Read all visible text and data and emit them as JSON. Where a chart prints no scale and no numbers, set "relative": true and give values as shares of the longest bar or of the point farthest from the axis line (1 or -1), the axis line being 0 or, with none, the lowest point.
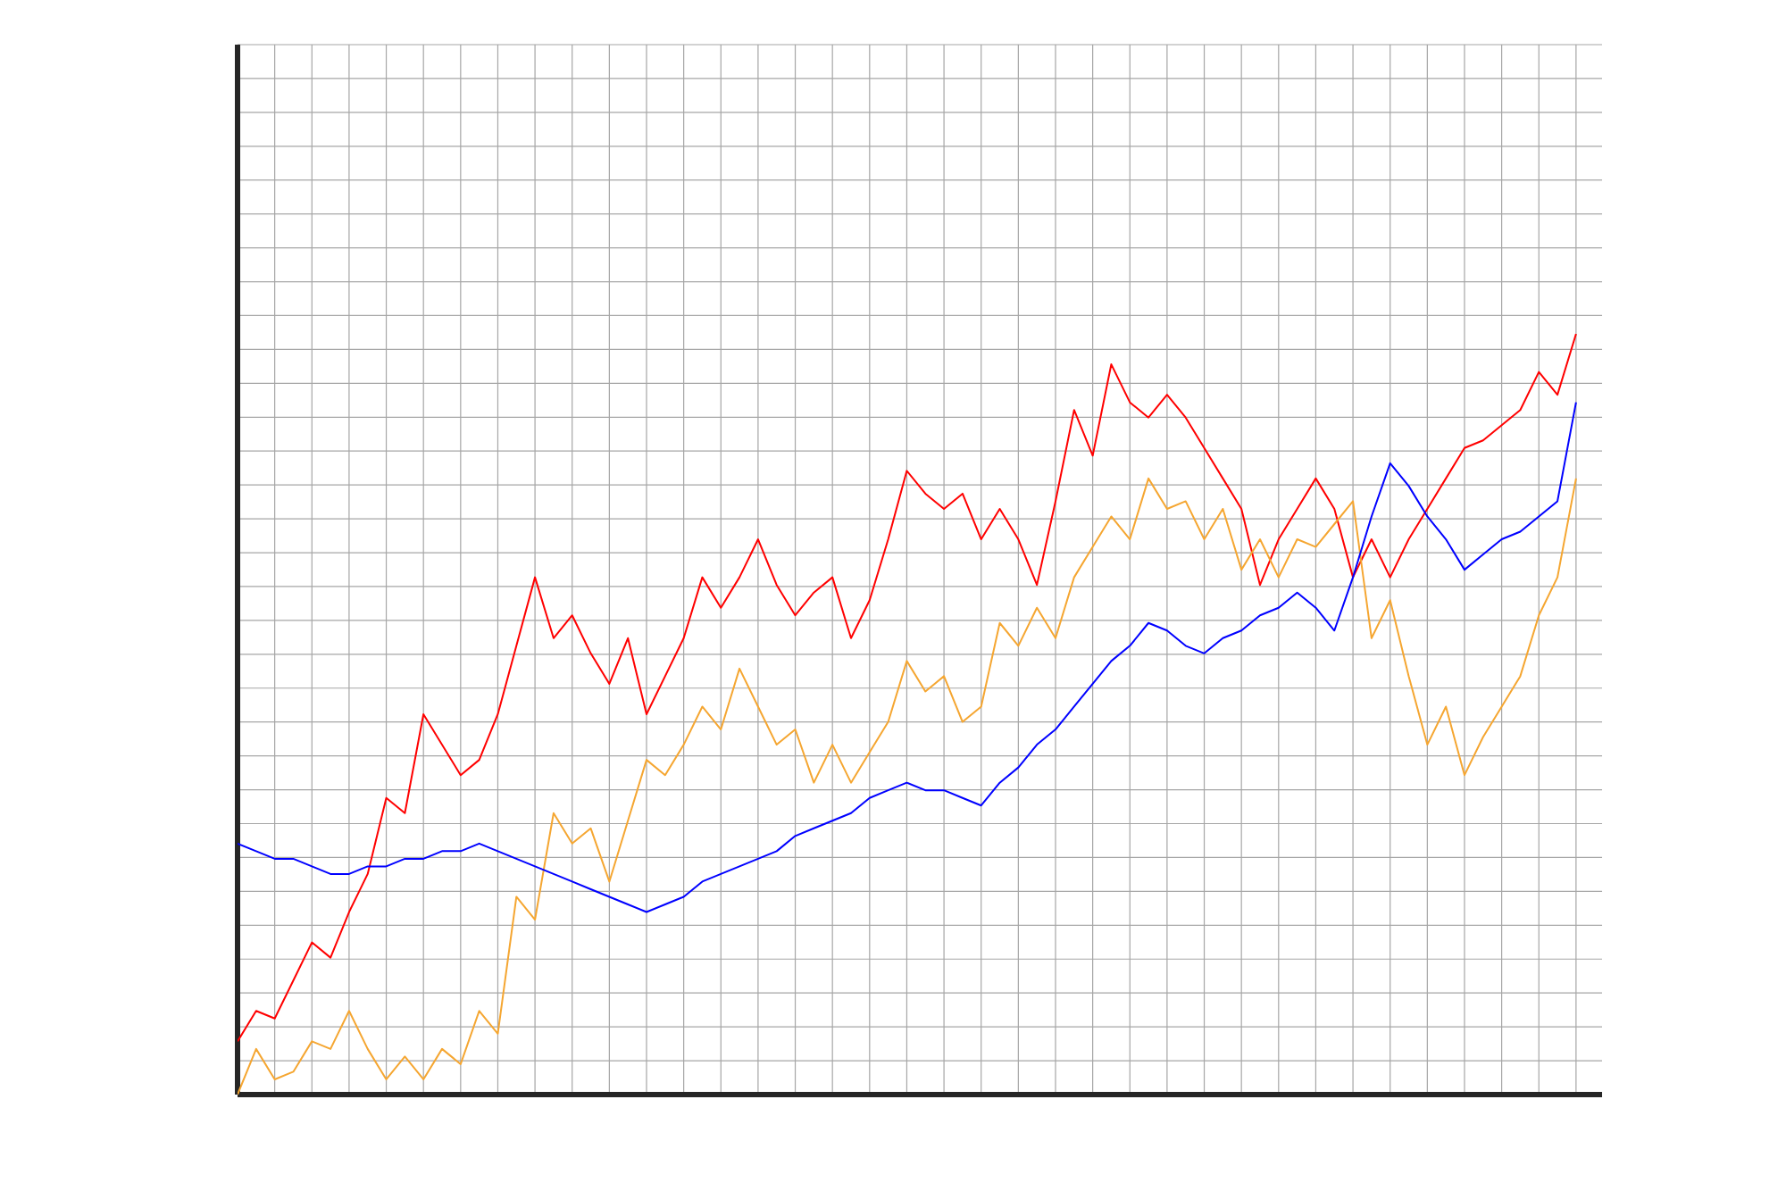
{
  "chart_data": {
    "type": "line",
    "relative": true,
    "grid": true,
    "tick_labels": false,
    "marker": "none",
    "line_style": "solid",
    "categories": [
      null,
      null,
      null,
      null,
      null,
      null,
      null,
      null,
      null,
      null,
      null,
      null,
      null,
      null,
      null,
      null,
      null,
      null,
      null,
      null,
      null,
      null,
      null,
      null,
      null,
      null,
      null,
      null,
      null,
      null,
      null,
      null,
      null,
      null,
      null,
      null,
      null,
      null,
      null,
      null,
      null,
      null,
      null,
      null,
      null,
      null,
      null,
      null,
      null,
      null,
      null,
      null,
      null,
      null,
      null,
      null,
      null,
      null,
      null,
      null,
      null,
      null,
      null,
      null,
      null,
      null,
      null,
      null,
      null,
      null,
      null,
      null,
      null
    ],
    "series": [
      {
        "color": "#ff0000",
        "values": [
          0.07,
          0.11,
          0.1,
          0.15,
          0.2,
          0.18,
          0.24,
          0.29,
          0.39,
          0.37,
          0.5,
          0.46,
          0.42,
          0.44,
          0.5,
          0.59,
          0.68,
          0.6,
          0.63,
          0.58,
          0.54,
          0.6,
          0.5,
          0.55,
          0.6,
          0.68,
          0.64,
          0.68,
          0.73,
          0.67,
          0.63,
          0.66,
          0.68,
          0.6,
          0.65,
          0.73,
          0.82,
          0.79,
          0.77,
          0.79,
          0.73,
          0.77,
          0.73,
          0.67,
          0.78,
          0.9,
          0.84,
          0.96,
          0.91,
          0.89,
          0.92,
          0.89,
          0.85,
          0.81,
          0.77,
          0.67,
          0.73,
          0.77,
          0.81,
          0.77,
          0.68,
          0.73,
          0.68,
          0.73,
          0.77,
          0.81,
          0.85,
          0.86,
          0.88,
          0.9,
          0.95,
          0.92,
          1.0
        ]
      },
      {
        "color": "#f5a631",
        "values": [
          0,
          0.06,
          0.02,
          0.03,
          0.07,
          0.06,
          0.11,
          0.06,
          0.02,
          0.05,
          0.02,
          0.06,
          0.04,
          0.11,
          0.08,
          0.26,
          0.23,
          0.37,
          0.33,
          0.35,
          0.28,
          0.36,
          0.44,
          0.42,
          0.46,
          0.51,
          0.48,
          0.56,
          0.51,
          0.46,
          0.48,
          0.41,
          0.46,
          0.41,
          0.45,
          0.49,
          0.57,
          0.53,
          0.55,
          0.49,
          0.51,
          0.62,
          0.59,
          0.64,
          0.6,
          0.68,
          0.72,
          0.76,
          0.73,
          0.81,
          0.77,
          0.78,
          0.73,
          0.77,
          0.69,
          0.73,
          0.68,
          0.73,
          0.72,
          0.75,
          0.78,
          0.6,
          0.65,
          0.55,
          0.46,
          0.51,
          0.42,
          0.47,
          0.51,
          0.55,
          0.63,
          0.68,
          0.81
        ]
      },
      {
        "color": "#0000ff",
        "values": [
          0.33,
          0.32,
          0.31,
          0.31,
          0.3,
          0.29,
          0.29,
          0.3,
          0.3,
          0.31,
          0.31,
          0.32,
          0.32,
          0.33,
          0.32,
          0.31,
          0.3,
          0.29,
          0.28,
          0.27,
          0.26,
          0.25,
          0.24,
          0.25,
          0.26,
          0.28,
          0.29,
          0.3,
          0.31,
          0.32,
          0.34,
          0.35,
          0.36,
          0.37,
          0.39,
          0.4,
          0.41,
          0.4,
          0.4,
          0.39,
          0.38,
          0.41,
          0.43,
          0.46,
          0.48,
          0.51,
          0.54,
          0.57,
          0.59,
          0.62,
          0.61,
          0.59,
          0.58,
          0.6,
          0.61,
          0.63,
          0.64,
          0.66,
          0.64,
          0.61,
          0.68,
          0.76,
          0.83,
          0.8,
          0.76,
          0.73,
          0.69,
          0.71,
          0.73,
          0.74,
          0.76,
          0.78,
          0.91
        ]
      }
    ]
  }
}
